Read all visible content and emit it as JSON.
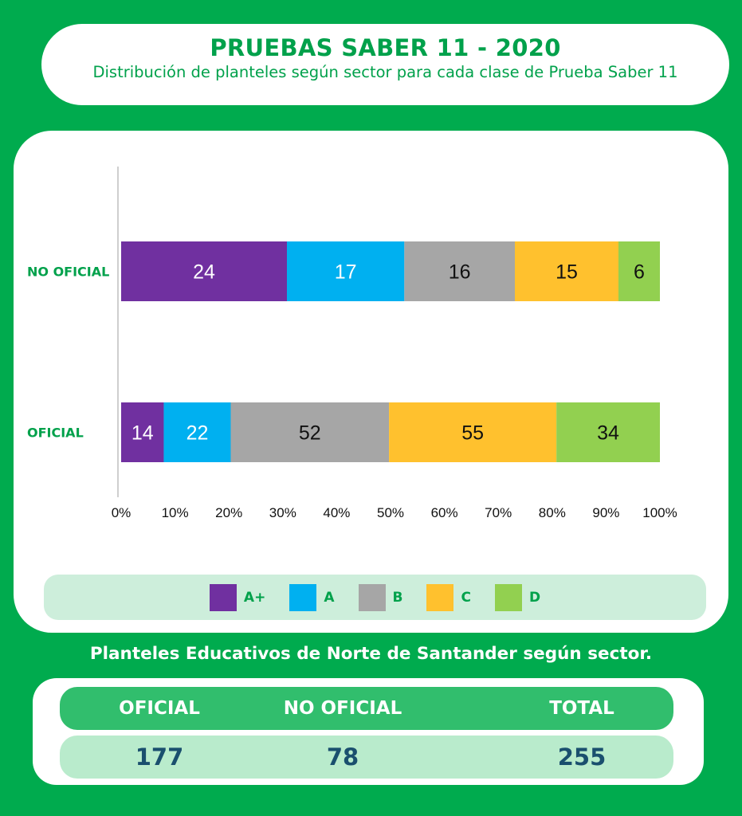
{
  "header": {
    "title": "PRUEBAS SABER 11 - 2020",
    "subtitle": "Distribución de planteles según sector para cada clase de Prueba Saber 11"
  },
  "chart_data": {
    "type": "bar",
    "orientation": "horizontal",
    "stacked": "percent",
    "categories": [
      "NO OFICIAL",
      "OFICIAL"
    ],
    "series": [
      {
        "name": "A+",
        "values": [
          24,
          14
        ],
        "color": "#7030a0"
      },
      {
        "name": "A",
        "values": [
          17,
          22
        ],
        "color": "#00b0f0"
      },
      {
        "name": "B",
        "values": [
          16,
          52
        ],
        "color": "#a6a6a6"
      },
      {
        "name": "C",
        "values": [
          15,
          55
        ],
        "color": "#ffc12e"
      },
      {
        "name": "D",
        "values": [
          6,
          34
        ],
        "color": "#92d050"
      }
    ],
    "x_ticks": [
      "0%",
      "10%",
      "20%",
      "30%",
      "40%",
      "50%",
      "60%",
      "70%",
      "80%",
      "90%",
      "100%"
    ],
    "xlim": [
      0,
      100
    ],
    "category_label_color": "#00a14b",
    "grid": false,
    "legend_position": "bottom"
  },
  "caption": "Planteles Educativos de Norte de Santander según sector.",
  "summary": {
    "headers": [
      "OFICIAL",
      "NO OFICIAL",
      "TOTAL"
    ],
    "values": [
      "177",
      "78",
      "255"
    ]
  }
}
